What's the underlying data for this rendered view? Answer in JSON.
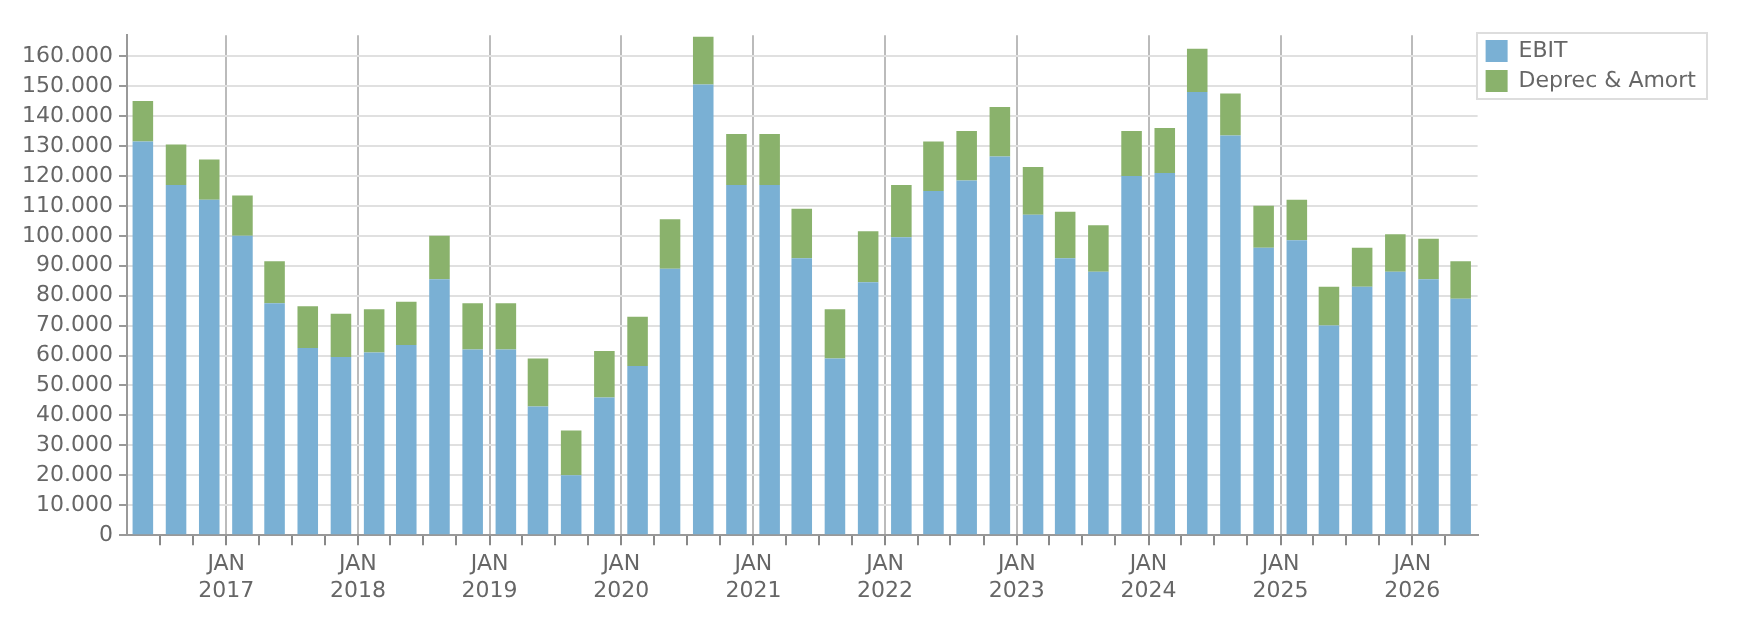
{
  "chart_data": {
    "type": "bar",
    "stacked": true,
    "grid": true,
    "legend": "top right",
    "x": [
      "2016-05-15",
      "2016-08-15",
      "2016-11-15",
      "2017-02-15",
      "2017-05-15",
      "2017-08-15",
      "2017-11-15",
      "2018-02-15",
      "2018-05-15",
      "2018-08-15",
      "2018-11-15",
      "2019-02-15",
      "2019-05-15",
      "2019-08-15",
      "2019-11-15",
      "2020-02-15",
      "2020-05-15",
      "2020-08-15",
      "2020-11-15",
      "2021-02-15",
      "2021-05-15",
      "2021-08-15",
      "2021-11-15",
      "2022-02-15",
      "2022-05-15",
      "2022-08-15",
      "2022-11-15",
      "2023-02-15",
      "2023-05-15",
      "2023-08-15",
      "2023-11-15",
      "2024-02-15",
      "2024-05-15",
      "2024-08-15",
      "2024-11-15",
      "2025-02-15",
      "2025-05-15",
      "2025-08-15",
      "2025-11-15",
      "2026-02-15",
      "2026-05-15"
    ],
    "xlim": [
      "2016-04",
      "2026-07"
    ],
    "xticks": [
      {
        "value": "2016-07",
        "label": null
      },
      {
        "value": "2016-10",
        "label": null
      },
      {
        "value": "2017-01",
        "label": "JAN 2017"
      },
      {
        "value": "2017-04",
        "label": null
      },
      {
        "value": "2017-07",
        "label": null
      },
      {
        "value": "2017-10",
        "label": null
      },
      {
        "value": "2018-01",
        "label": "JAN 2018"
      },
      {
        "value": "2018-04",
        "label": null
      },
      {
        "value": "2018-07",
        "label": null
      },
      {
        "value": "2018-10",
        "label": null
      },
      {
        "value": "2019-01",
        "label": "JAN 2019"
      },
      {
        "value": "2019-04",
        "label": null
      },
      {
        "value": "2019-07",
        "label": null
      },
      {
        "value": "2019-10",
        "label": null
      },
      {
        "value": "2020-01",
        "label": "JAN 2020"
      },
      {
        "value": "2020-04",
        "label": null
      },
      {
        "value": "2020-07",
        "label": null
      },
      {
        "value": "2020-10",
        "label": null
      },
      {
        "value": "2021-01",
        "label": "JAN 2021"
      },
      {
        "value": "2021-04",
        "label": null
      },
      {
        "value": "2021-07",
        "label": null
      },
      {
        "value": "2021-10",
        "label": null
      },
      {
        "value": "2022-01",
        "label": "JAN 2022"
      },
      {
        "value": "2022-04",
        "label": null
      },
      {
        "value": "2022-07",
        "label": null
      },
      {
        "value": "2022-10",
        "label": null
      },
      {
        "value": "2023-01",
        "label": "JAN 2023"
      },
      {
        "value": "2023-04",
        "label": null
      },
      {
        "value": "2023-07",
        "label": null
      },
      {
        "value": "2023-10",
        "label": null
      },
      {
        "value": "2024-01",
        "label": "JAN 2024"
      },
      {
        "value": "2024-04",
        "label": null
      },
      {
        "value": "2024-07",
        "label": null
      },
      {
        "value": "2024-10",
        "label": null
      },
      {
        "value": "2025-01",
        "label": "JAN 2025"
      },
      {
        "value": "2025-04",
        "label": null
      },
      {
        "value": "2025-07",
        "label": null
      },
      {
        "value": "2025-10",
        "label": null
      },
      {
        "value": "2026-01",
        "label": "JAN 2026"
      },
      {
        "value": "2026-04",
        "label": null
      }
    ],
    "ylim": [
      0,
      167000
    ],
    "yticks": [
      {
        "value": 0,
        "label": "0"
      },
      {
        "value": 10000,
        "label": "10.000"
      },
      {
        "value": 20000,
        "label": "20.000"
      },
      {
        "value": 30000,
        "label": "30.000"
      },
      {
        "value": 40000,
        "label": "40.000"
      },
      {
        "value": 50000,
        "label": "50.000"
      },
      {
        "value": 60000,
        "label": "60.000"
      },
      {
        "value": 70000,
        "label": "70.000"
      },
      {
        "value": 80000,
        "label": "80.000"
      },
      {
        "value": 90000,
        "label": "90.000"
      },
      {
        "value": 100000,
        "label": "100.000"
      },
      {
        "value": 110000,
        "label": "110.000"
      },
      {
        "value": 120000,
        "label": "120.000"
      },
      {
        "value": 130000,
        "label": "130.000"
      },
      {
        "value": 140000,
        "label": "140.000"
      },
      {
        "value": 150000,
        "label": "150.000"
      },
      {
        "value": 160000,
        "label": "160.000"
      }
    ],
    "series": [
      {
        "name": "EBIT",
        "color": "#7ab0d4",
        "values": [
          131500,
          117000,
          112000,
          100000,
          77500,
          62500,
          59500,
          61000,
          63500,
          85500,
          62000,
          62000,
          43000,
          20000,
          46000,
          56500,
          89000,
          150500,
          117000,
          117000,
          92500,
          59000,
          84500,
          99500,
          115000,
          118500,
          126500,
          107000,
          92500,
          88000,
          120000,
          121000,
          148000,
          133500,
          96000,
          98500,
          70000,
          83000,
          88000,
          85500,
          79000
        ]
      },
      {
        "name": "Deprec & Amort",
        "color": "#8ab26c",
        "values": [
          13500,
          13500,
          13500,
          13500,
          14000,
          14000,
          14500,
          14500,
          14500,
          14500,
          15500,
          15500,
          16000,
          15000,
          15500,
          16500,
          16500,
          16000,
          17000,
          17000,
          16500,
          16500,
          17000,
          17500,
          16500,
          16500,
          16500,
          16000,
          15500,
          15500,
          15000,
          15000,
          14500,
          14000,
          14000,
          13500,
          13000,
          13000,
          12500,
          13500,
          12500
        ]
      }
    ]
  }
}
